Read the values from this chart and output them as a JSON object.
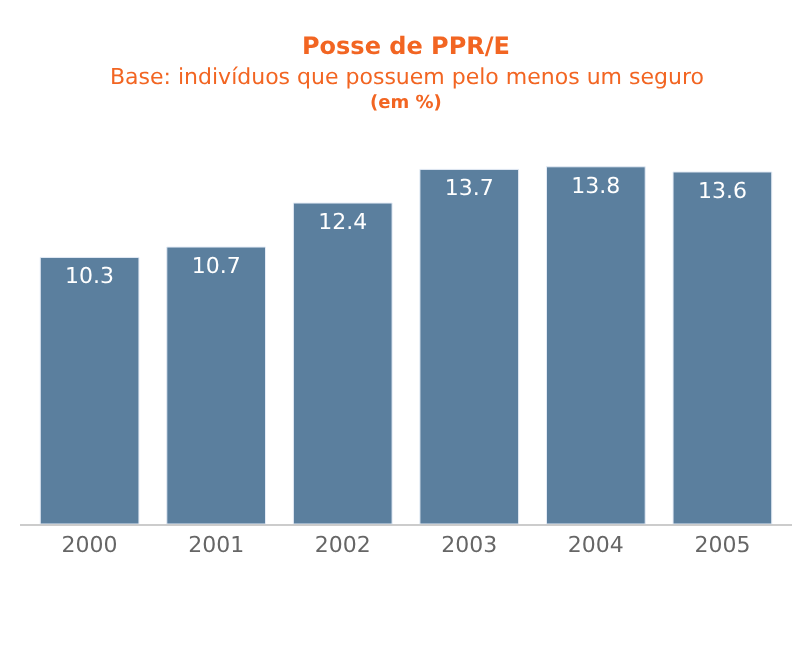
{
  "chart_data": {
    "type": "bar",
    "title": "Posse de PPR/E",
    "subtitle": "Base: indivíduos que possuem pelo menos um seguro",
    "annotations": [
      "(em %)"
    ],
    "categories": [
      "2000",
      "2001",
      "2002",
      "2003",
      "2004",
      "2005"
    ],
    "values": [
      10.3,
      10.7,
      12.4,
      13.7,
      13.8,
      13.6
    ],
    "color": "#5b7f9e",
    "data_labels": true,
    "legend": false
  }
}
